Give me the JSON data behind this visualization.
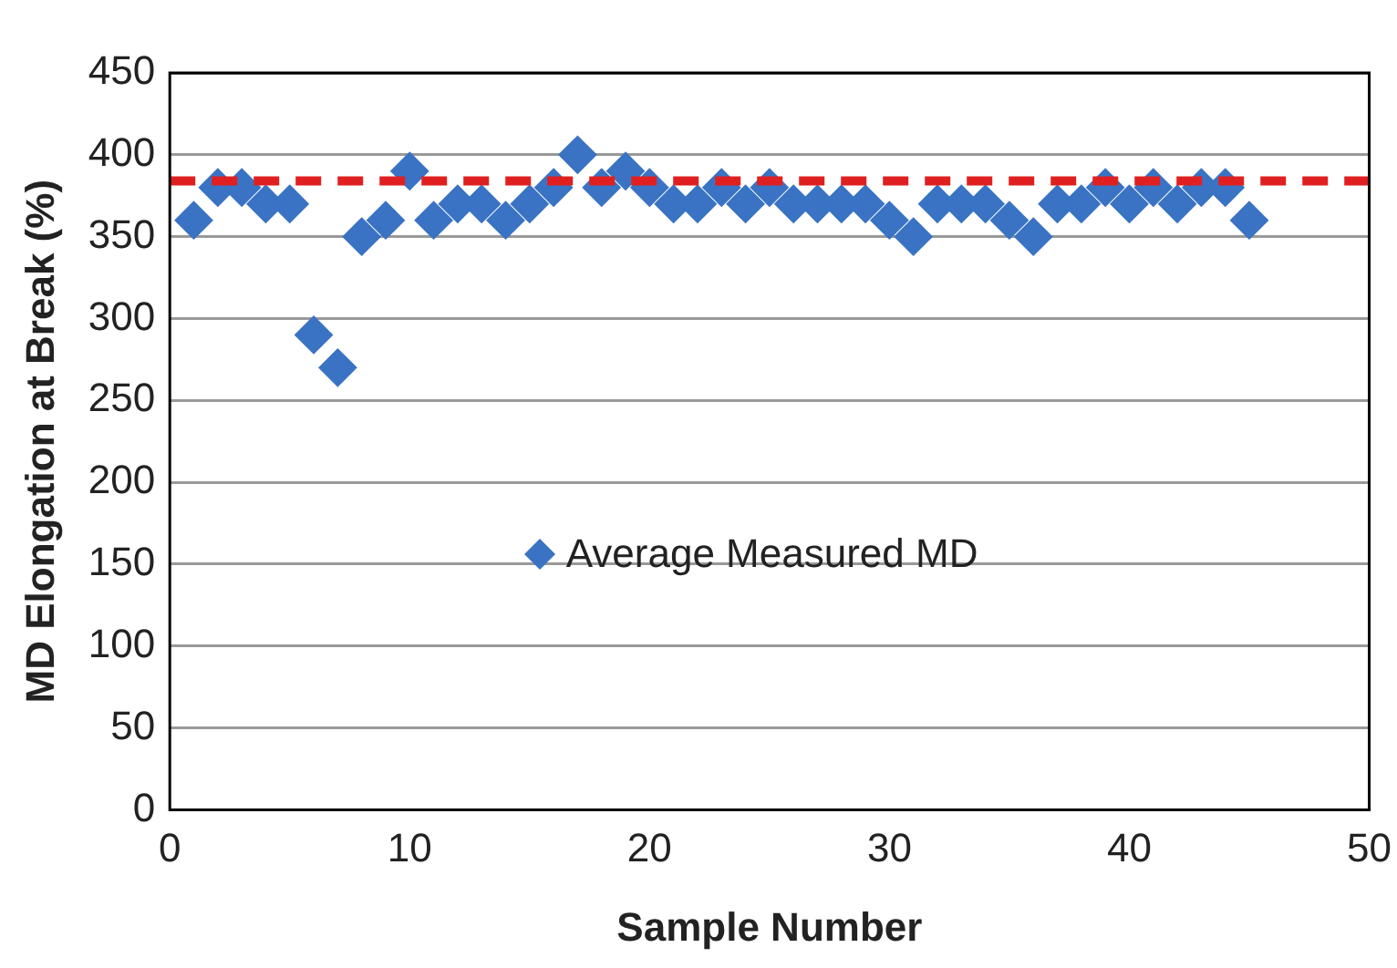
{
  "chart_data": {
    "type": "scatter",
    "xlabel": "Sample Number",
    "ylabel": "MD Elongation at Break (%)",
    "x": [
      1,
      2,
      3,
      4,
      5,
      6,
      7,
      8,
      9,
      10,
      11,
      12,
      13,
      14,
      15,
      16,
      17,
      18,
      19,
      20,
      21,
      22,
      23,
      24,
      25,
      26,
      27,
      28,
      29,
      30,
      31,
      32,
      33,
      34,
      35,
      36,
      37,
      38,
      39,
      40,
      41,
      42,
      43,
      44,
      45
    ],
    "series": [
      {
        "name": "Average Measured MD",
        "color": "#3a73c4",
        "values": [
          360,
          380,
          380,
          370,
          370,
          290,
          270,
          350,
          360,
          390,
          360,
          370,
          370,
          360,
          370,
          380,
          400,
          380,
          390,
          380,
          370,
          370,
          380,
          370,
          380,
          370,
          370,
          370,
          370,
          360,
          350,
          370,
          370,
          370,
          360,
          350,
          370,
          370,
          380,
          370,
          380,
          370,
          380,
          380,
          360
        ]
      }
    ],
    "xlim": [
      0,
      50
    ],
    "xticks": [
      0,
      10,
      20,
      30,
      40,
      50
    ],
    "ylim": [
      0,
      450
    ],
    "yticks": [
      0,
      50,
      100,
      150,
      200,
      250,
      300,
      350,
      400,
      450
    ],
    "ref_lines": [
      {
        "axis": "y",
        "value": 384,
        "color": "#e02020",
        "line_style": "dashed"
      }
    ],
    "grid": "y",
    "legend": "center",
    "marker": "diamond"
  }
}
